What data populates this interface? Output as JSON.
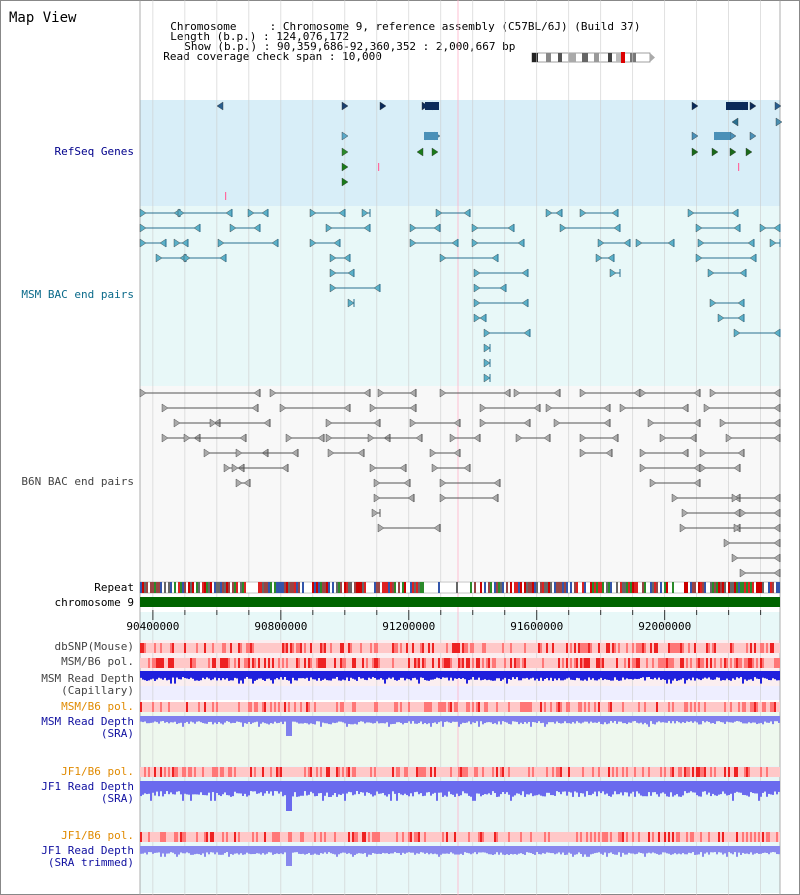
{
  "page": {
    "title": "Map View"
  },
  "info": {
    "chromosome_key": "Chromosome",
    "chromosome_val": "Chromosome 9, reference assembly (C57BL/6J) (Build 37)",
    "length_key": "Length (b.p.)",
    "length_val": "124,076,172",
    "show_key": "Show (b.p.)",
    "show_val": "90,359,686-92,360,352 : 2,000,667 bp",
    "coverage_key": "Read coverage check span",
    "coverage_val": "10,000"
  },
  "tracks": {
    "refseq": "RefSeq Genes",
    "msm_bac": "MSM BAC end pairs",
    "b6n_bac": "B6N BAC end pairs",
    "repeat": "Repeat",
    "chromosome": "chromosome 9",
    "dbsnp": "dbSNP(Mouse)",
    "msm_b6_pol_1": "MSM/B6 pol.",
    "msm_depth_cap_1": "MSM Read Depth",
    "msm_depth_cap_2": "(Capillary)",
    "msm_b6_pol_2": "MSM/B6 pol.",
    "msm_depth_sra_1": "MSM Read Depth",
    "msm_depth_sra_2": "(SRA)",
    "jf1_b6_pol_1": "JF1/B6 pol.",
    "jf1_depth_sra_1": "JF1 Read Depth",
    "jf1_depth_sra_2": "(SRA)",
    "jf1_b6_pol_2": "JF1/B6 pol.",
    "jf1_depth_trim_1": "JF1 Read Depth",
    "jf1_depth_trim_2": "(SRA trimmed)"
  },
  "axis": {
    "ticks": [
      "90400000",
      "90800000",
      "91200000",
      "91600000",
      "92000000"
    ],
    "tick_values": [
      90400000,
      90800000,
      91200000,
      91600000,
      92000000
    ],
    "range": [
      90359686,
      92360352
    ]
  },
  "colors": {
    "refseq_bg": "#d8eef8",
    "msm_bg": "#e8f8f8",
    "chromosome": "#006400",
    "snp_light": "#ffc8c8",
    "snp_dark": "#ee2222",
    "depth_blue": "#2020dd",
    "depth_light": "#8080ee"
  }
}
